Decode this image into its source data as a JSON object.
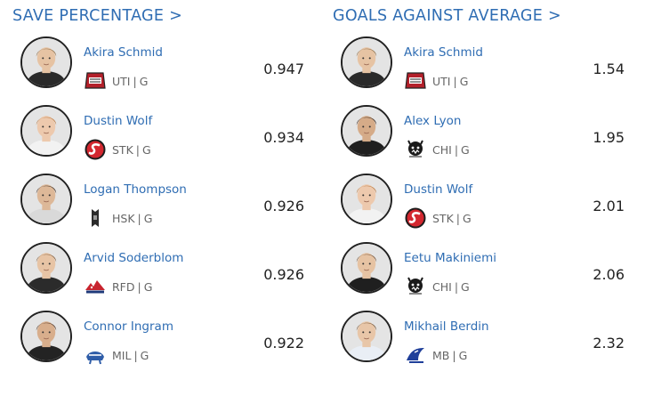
{
  "columns": [
    {
      "title": "SAVE PERCENTAGE >",
      "rows": [
        {
          "name": "Akira Schmid",
          "team": "UTI",
          "pos": "G",
          "value": "0.947",
          "logo": "uti-logo-icon",
          "hair": "#8a6a42",
          "jersey": "#2a2a2a",
          "skin": "#e6c3a3"
        },
        {
          "name": "Dustin Wolf",
          "team": "STK",
          "pos": "G",
          "value": "0.934",
          "logo": "stk-logo-icon",
          "hair": "#b9773e",
          "jersey": "#f2f2f2",
          "skin": "#edc9ad"
        },
        {
          "name": "Logan Thompson",
          "team": "HSK",
          "pos": "G",
          "value": "0.926",
          "logo": "hsk-logo-icon",
          "hair": "#3b2c22",
          "jersey": "#d9d9d9",
          "skin": "#ddb898"
        },
        {
          "name": "Arvid Soderblom",
          "team": "RFD",
          "pos": "G",
          "value": "0.926",
          "logo": "rfd-logo-icon",
          "hair": "#7b5a3a",
          "jersey": "#2b2b2b",
          "skin": "#e7c4a5"
        },
        {
          "name": "Connor Ingram",
          "team": "MIL",
          "pos": "G",
          "value": "0.922",
          "logo": "mil-logo-icon",
          "hair": "#4a3224",
          "jersey": "#232323",
          "skin": "#d8ae8c"
        }
      ]
    },
    {
      "title": "GOALS AGAINST AVERAGE >",
      "rows": [
        {
          "name": "Akira Schmid",
          "team": "UTI",
          "pos": "G",
          "value": "1.54",
          "logo": "uti-logo-icon",
          "hair": "#8a6a42",
          "jersey": "#2a2a2a",
          "skin": "#e6c3a3"
        },
        {
          "name": "Alex Lyon",
          "team": "CHI",
          "pos": "G",
          "value": "1.95",
          "logo": "chi-logo-icon",
          "hair": "#2e2119",
          "jersey": "#1f1f1f",
          "skin": "#d5ab88"
        },
        {
          "name": "Dustin Wolf",
          "team": "STK",
          "pos": "G",
          "value": "2.01",
          "logo": "stk-logo-icon",
          "hair": "#b9773e",
          "jersey": "#f2f2f2",
          "skin": "#edc9ad"
        },
        {
          "name": "Eetu Makiniemi",
          "team": "CHI",
          "pos": "G",
          "value": "2.06",
          "logo": "chi-logo-icon",
          "hair": "#6b4c32",
          "jersey": "#1f1f1f",
          "skin": "#e6c3a3"
        },
        {
          "name": "Mikhail Berdin",
          "team": "MB",
          "pos": "G",
          "value": "2.32",
          "logo": "mb-logo-icon",
          "hair": "#6e5236",
          "jersey": "#e9eef5",
          "skin": "#e8c6a8"
        }
      ]
    }
  ]
}
